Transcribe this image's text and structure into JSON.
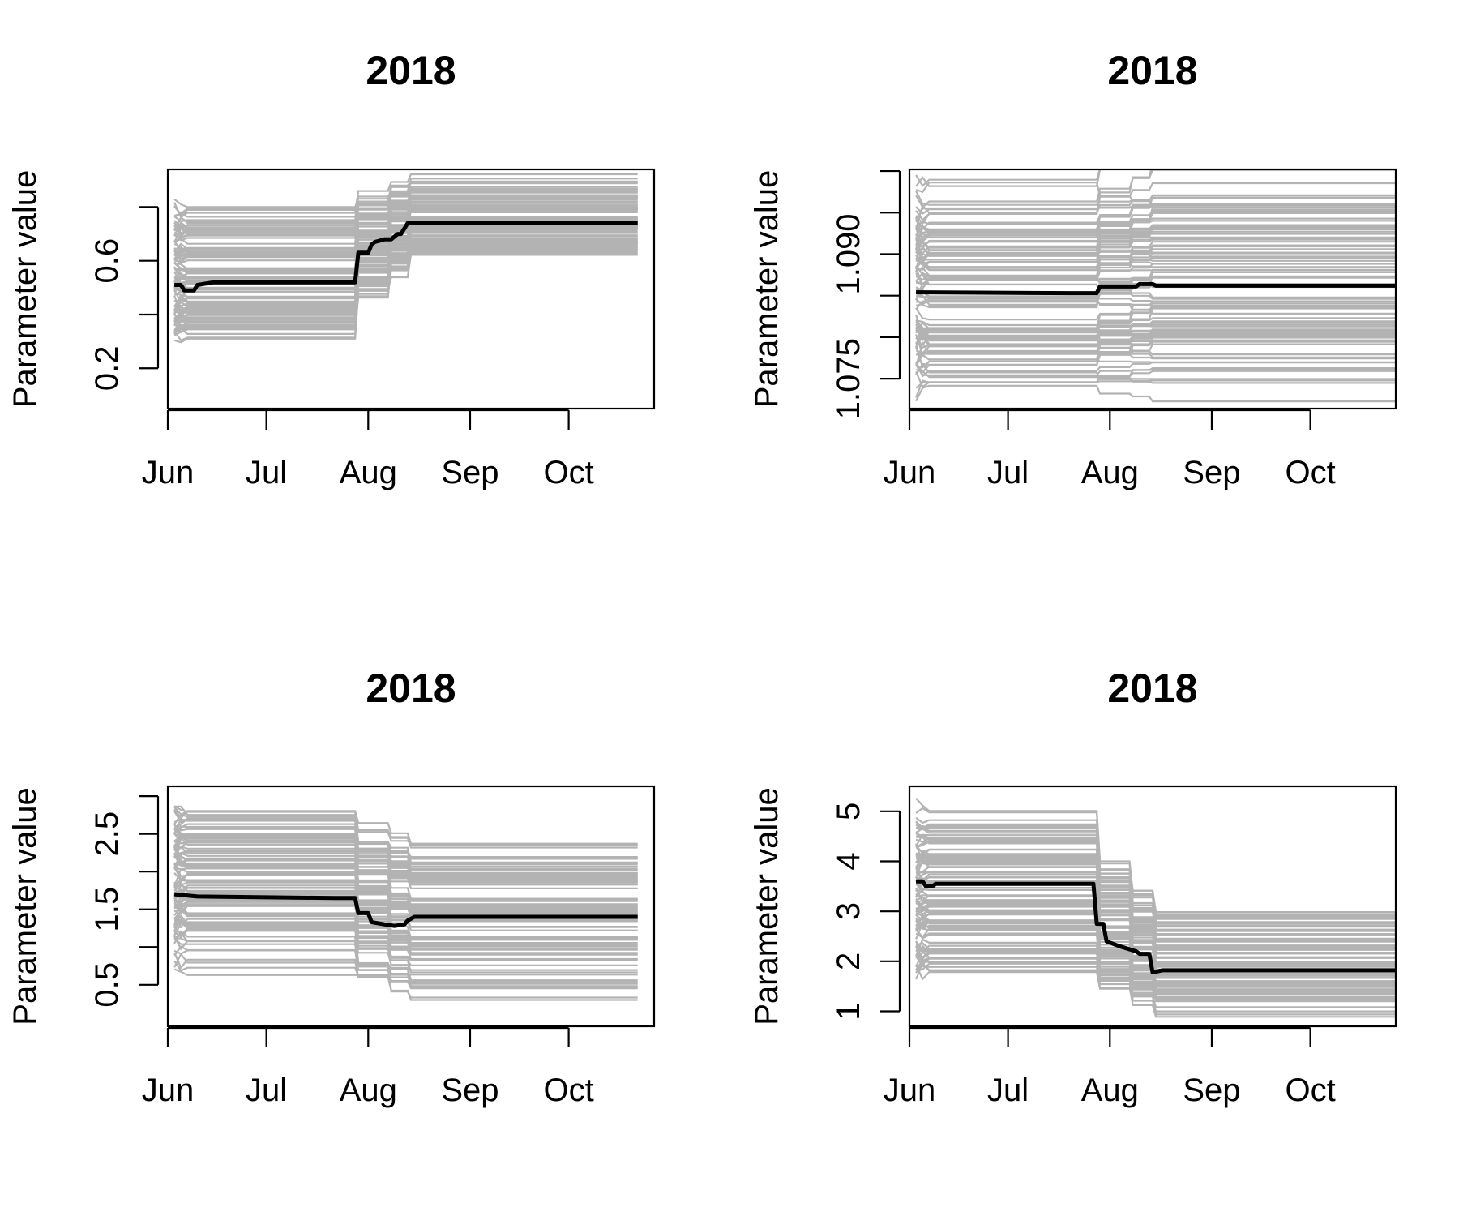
{
  "colors": {
    "background": "#ffffff",
    "ensemble_lines": "#b3b3b3",
    "median_line": "#000000",
    "axes": "#000000"
  },
  "chart_data": [
    {
      "type": "line",
      "title": "2018",
      "xlabel": "",
      "ylabel": "Parameter value",
      "x_range": [
        "2018-06-01",
        "2018-10-27"
      ],
      "x_ticks": [
        {
          "date": "2018-06-01",
          "label": "Jun"
        },
        {
          "date": "2018-07-01",
          "label": "Jul"
        },
        {
          "date": "2018-08-01",
          "label": "Aug"
        },
        {
          "date": "2018-09-01",
          "label": "Sep"
        },
        {
          "date": "2018-10-01",
          "label": "Oct"
        }
      ],
      "y_range": [
        0.05,
        0.94
      ],
      "y_ticks": [
        {
          "value": 0.2,
          "label": "0.2"
        },
        {
          "value": 0.4,
          "label": ""
        },
        {
          "value": 0.6,
          "label": "0.6"
        },
        {
          "value": 0.8,
          "label": ""
        }
      ],
      "grid": false,
      "data_end": "2018-10-22",
      "ensemble": {
        "count": 100,
        "pre_value_range": [
          0.28,
          0.8
        ],
        "post_value_range": [
          0.62,
          0.9
        ],
        "transition_dates": [
          "2018-07-28",
          "2018-08-07",
          "2018-08-13"
        ]
      },
      "median_series": {
        "x": [
          "2018-06-03",
          "2018-06-05",
          "2018-06-06",
          "2018-06-09",
          "2018-06-10",
          "2018-06-15",
          "2018-07-28",
          "2018-07-29",
          "2018-07-30",
          "2018-08-01",
          "2018-08-02",
          "2018-08-03",
          "2018-08-06",
          "2018-08-08",
          "2018-08-10",
          "2018-08-11",
          "2018-08-13",
          "2018-08-14",
          "2018-10-22"
        ],
        "y": [
          0.51,
          0.51,
          0.49,
          0.49,
          0.51,
          0.52,
          0.52,
          0.63,
          0.63,
          0.63,
          0.66,
          0.67,
          0.68,
          0.68,
          0.7,
          0.7,
          0.74,
          0.74,
          0.74
        ]
      }
    },
    {
      "type": "line",
      "title": "2018",
      "xlabel": "",
      "ylabel": "Parameter value",
      "x_range": [
        "2018-06-01",
        "2018-10-27"
      ],
      "x_ticks": [
        {
          "date": "2018-06-01",
          "label": "Jun"
        },
        {
          "date": "2018-07-01",
          "label": "Jul"
        },
        {
          "date": "2018-08-01",
          "label": "Aug"
        },
        {
          "date": "2018-09-01",
          "label": "Sep"
        },
        {
          "date": "2018-10-01",
          "label": "Oct"
        }
      ],
      "y_range": [
        1.0714,
        1.1002
      ],
      "y_ticks": [
        {
          "value": 1.075,
          "label": "1.075"
        },
        {
          "value": 1.08,
          "label": ""
        },
        {
          "value": 1.085,
          "label": ""
        },
        {
          "value": 1.09,
          "label": "1.090"
        },
        {
          "value": 1.095,
          "label": ""
        },
        {
          "value": 1.1,
          "label": ""
        }
      ],
      "grid": false,
      "data_end": "2018-10-27",
      "ensemble": {
        "count": 100,
        "pre_value_range": [
          1.0725,
          1.0995
        ],
        "post_value_range": [
          1.0745,
          1.1
        ],
        "transition_dates": [
          "2018-07-28",
          "2018-08-07",
          "2018-08-13"
        ]
      },
      "median_series": {
        "x": [
          "2018-06-03",
          "2018-07-20",
          "2018-07-28",
          "2018-07-29",
          "2018-08-09",
          "2018-08-10",
          "2018-08-14",
          "2018-08-15",
          "2018-10-27"
        ],
        "y": [
          1.0854,
          1.0853,
          1.0853,
          1.0861,
          1.0861,
          1.0864,
          1.0864,
          1.0862,
          1.0862
        ]
      }
    },
    {
      "type": "line",
      "title": "2018",
      "xlabel": "",
      "ylabel": "Parameter value",
      "x_range": [
        "2018-06-01",
        "2018-10-27"
      ],
      "x_ticks": [
        {
          "date": "2018-06-01",
          "label": "Jun"
        },
        {
          "date": "2018-07-01",
          "label": "Jul"
        },
        {
          "date": "2018-08-01",
          "label": "Aug"
        },
        {
          "date": "2018-09-01",
          "label": "Sep"
        },
        {
          "date": "2018-10-01",
          "label": "Oct"
        }
      ],
      "y_range": [
        -0.05,
        3.13
      ],
      "y_ticks": [
        {
          "value": 0.5,
          "label": "0.5"
        },
        {
          "value": 1.0,
          "label": ""
        },
        {
          "value": 1.5,
          "label": "1.5"
        },
        {
          "value": 2.0,
          "label": ""
        },
        {
          "value": 2.5,
          "label": "2.5"
        },
        {
          "value": 3.0,
          "label": ""
        }
      ],
      "grid": false,
      "data_end": "2018-10-22",
      "ensemble": {
        "count": 100,
        "pre_value_range": [
          0.55,
          3.05
        ],
        "post_value_range": [
          0.2,
          2.45
        ],
        "transition_dates": [
          "2018-07-28",
          "2018-08-07",
          "2018-08-13"
        ]
      },
      "median_series": {
        "x": [
          "2018-06-03",
          "2018-06-10",
          "2018-07-22",
          "2018-07-28",
          "2018-07-29",
          "2018-08-01",
          "2018-08-02",
          "2018-08-06",
          "2018-08-09",
          "2018-08-12",
          "2018-08-13",
          "2018-08-15",
          "2018-10-22"
        ],
        "y": [
          1.7,
          1.67,
          1.65,
          1.65,
          1.45,
          1.45,
          1.33,
          1.3,
          1.28,
          1.3,
          1.35,
          1.4,
          1.4
        ]
      }
    },
    {
      "type": "line",
      "title": "2018",
      "xlabel": "",
      "ylabel": "Parameter value",
      "x_range": [
        "2018-06-01",
        "2018-10-27"
      ],
      "x_ticks": [
        {
          "date": "2018-06-01",
          "label": "Jun"
        },
        {
          "date": "2018-07-01",
          "label": "Jul"
        },
        {
          "date": "2018-08-01",
          "label": "Aug"
        },
        {
          "date": "2018-09-01",
          "label": "Sep"
        },
        {
          "date": "2018-10-01",
          "label": "Oct"
        }
      ],
      "y_range": [
        0.7,
        5.5
      ],
      "y_ticks": [
        {
          "value": 1,
          "label": "1"
        },
        {
          "value": 2,
          "label": "2"
        },
        {
          "value": 3,
          "label": "3"
        },
        {
          "value": 4,
          "label": "4"
        },
        {
          "value": 5,
          "label": "5"
        }
      ],
      "grid": false,
      "data_end": "2018-10-27",
      "ensemble": {
        "count": 100,
        "pre_value_range": [
          1.6,
          5.1
        ],
        "post_value_range": [
          0.95,
          3.0
        ],
        "transition_dates": [
          "2018-07-28",
          "2018-08-07",
          "2018-08-14"
        ]
      },
      "median_series": {
        "x": [
          "2018-06-03",
          "2018-06-05",
          "2018-06-06",
          "2018-06-08",
          "2018-06-09",
          "2018-07-25",
          "2018-07-27",
          "2018-07-28",
          "2018-07-30",
          "2018-07-31",
          "2018-08-02",
          "2018-08-04",
          "2018-08-09",
          "2018-08-10",
          "2018-08-13",
          "2018-08-14",
          "2018-08-17",
          "2018-10-27"
        ],
        "y": [
          3.6,
          3.6,
          3.5,
          3.5,
          3.55,
          3.55,
          3.55,
          2.75,
          2.75,
          2.4,
          2.35,
          2.3,
          2.2,
          2.15,
          2.15,
          1.78,
          1.82,
          1.82
        ]
      }
    }
  ]
}
